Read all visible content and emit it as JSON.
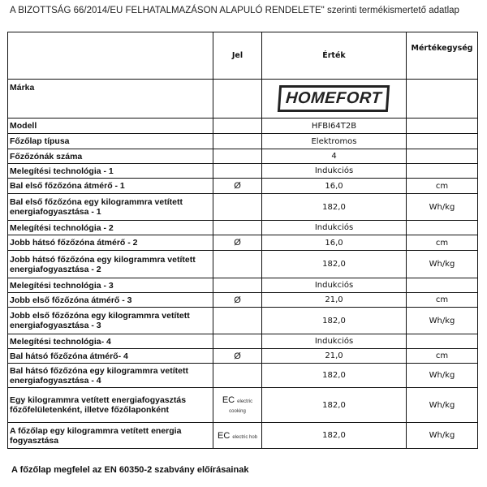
{
  "title": "A BIZOTTSÁG 66/2014/EU FELHATALMAZÁSON ALAPULÓ RENDELETE\" szerinti termékismertető adatlap",
  "header": {
    "label": "",
    "jel": "Jel",
    "ertek": "Érték",
    "unit": "Mértékegység"
  },
  "brand": {
    "label": "Márka",
    "logo": "HOMEFORT"
  },
  "rows": [
    {
      "label": "Modell",
      "jel": "",
      "value": "HFBI64T2B",
      "unit": ""
    },
    {
      "label": "Főzőlap típusa",
      "jel": "",
      "value": "Elektromos",
      "unit": ""
    },
    {
      "label": "Főzőzónák száma",
      "jel": "",
      "value": "4",
      "unit": ""
    },
    {
      "label": "Melegítési technológia - 1",
      "jel": "",
      "value": "Indukciós",
      "unit": ""
    },
    {
      "label": "Bal első főzőzóna átmérő - 1",
      "jel": "Ø",
      "value": "16,0",
      "unit": "cm"
    },
    {
      "label": "Bal első főzőzóna egy kilogrammra vetített energiafogyasztása - 1",
      "jel": "",
      "value": "182,0",
      "unit": "Wh/kg"
    },
    {
      "label": "Melegítési technológia - 2",
      "jel": "",
      "value": "Indukciós",
      "unit": ""
    },
    {
      "label": "Jobb hátsó főzőzóna átmérő - 2",
      "jel": "Ø",
      "value": "16,0",
      "unit": "cm"
    },
    {
      "label": "Jobb hátsó főzőzóna egy kilogrammra vetített energiafogyasztása - 2",
      "jel": "",
      "value": "182,0",
      "unit": "Wh/kg"
    },
    {
      "label": "Melegítési technológia - 3",
      "jel": "",
      "value": "Indukciós",
      "unit": ""
    },
    {
      "label": "Jobb első főzőzóna átmérő - 3",
      "jel": "Ø",
      "value": "21,0",
      "unit": "cm"
    },
    {
      "label": "Jobb első főzőzóna egy kilogrammra vetített energiafogyasztása - 3",
      "jel": "",
      "value": "182,0",
      "unit": "Wh/kg"
    },
    {
      "label": "Melegítési technológia- 4",
      "jel": "",
      "value": "Indukciós",
      "unit": ""
    },
    {
      "label": "Bal hátsó főzőzóna átmérő- 4",
      "jel": "Ø",
      "value": "21,0",
      "unit": "cm"
    },
    {
      "label": "Bal hátsó főzőzóna egy kilogrammra vetített energiafogyasztása - 4",
      "jel": "",
      "value": "182,0",
      "unit": "Wh/kg"
    }
  ],
  "ec_rows": [
    {
      "label": "Egy kilogrammra vetített energiafogyasztás főzőfelületenként, illetve főzőlaponként",
      "jel": "EC",
      "jel_sub": "electric cooking",
      "value": "182,0",
      "unit": "Wh/kg"
    },
    {
      "label": "A főzőlap egy kilogrammra vetített energia fogyasztása",
      "jel": "EC",
      "jel_sub": "electric hob",
      "value": "182,0",
      "unit": "Wh/kg"
    }
  ],
  "footer": "A főzőlap megfelel az EN 60350-2 szabvány előírásainak"
}
